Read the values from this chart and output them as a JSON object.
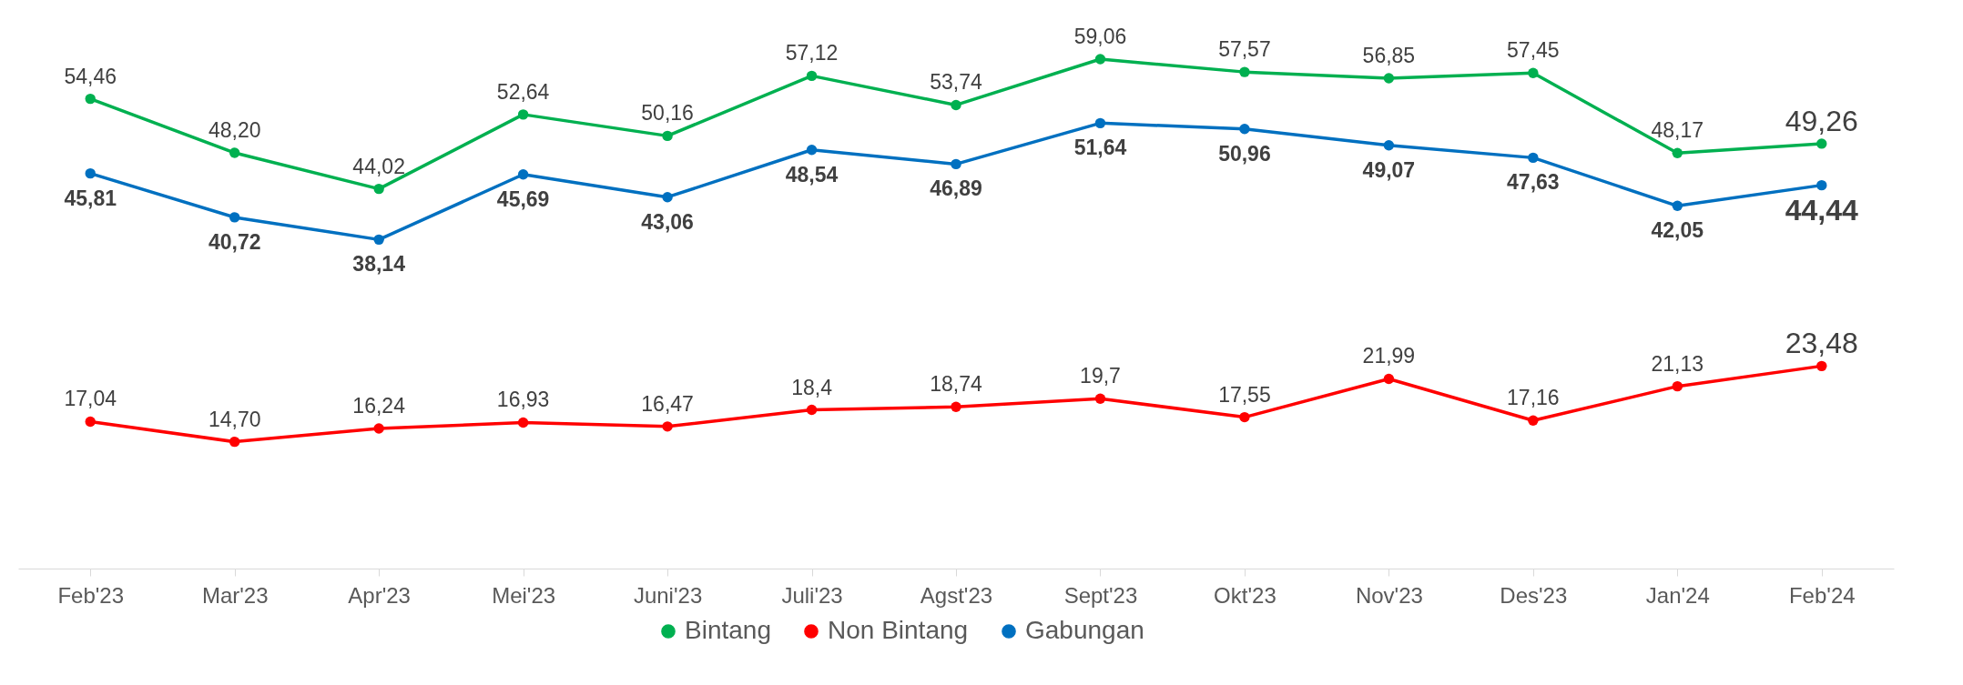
{
  "chart_data": {
    "type": "line",
    "categories": [
      "Feb'23",
      "Mar'23",
      "Apr'23",
      "Mei'23",
      "Juni'23",
      "Juli'23",
      "Agst'23",
      "Sept'23",
      "Okt'23",
      "Nov'23",
      "Des'23",
      "Jan'24",
      "Feb'24"
    ],
    "series": [
      {
        "name": "Bintang",
        "color": "#00b050",
        "values": [
          54.46,
          48.2,
          44.02,
          52.64,
          50.16,
          57.12,
          53.74,
          59.06,
          57.57,
          56.85,
          57.45,
          48.17,
          49.26
        ],
        "value_labels": [
          "54,46",
          "48,20",
          "44,02",
          "52,64",
          "50,16",
          "57,12",
          "53,74",
          "59,06",
          "57,57",
          "56,85",
          "57,45",
          "48,17",
          "49,26"
        ]
      },
      {
        "name": "Non Bintang",
        "color": "#ff0000",
        "values": [
          17.04,
          14.7,
          16.24,
          16.93,
          16.47,
          18.4,
          18.74,
          19.7,
          17.55,
          21.99,
          17.16,
          21.13,
          23.48
        ],
        "value_labels": [
          "17,04",
          "14,70",
          "16,24",
          "16,93",
          "16,47",
          "18,4",
          "18,74",
          "19,7",
          "17,55",
          "21,99",
          "17,16",
          "21,13",
          "23,48"
        ]
      },
      {
        "name": "Gabungan",
        "color": "#0070c0",
        "values": [
          45.81,
          40.72,
          38.14,
          45.69,
          43.06,
          48.54,
          46.89,
          51.64,
          50.96,
          49.07,
          47.63,
          42.05,
          44.44
        ],
        "value_labels": [
          "45,81",
          "40,72",
          "38,14",
          "45,69",
          "43,06",
          "48,54",
          "46,89",
          "51,64",
          "50,96",
          "49,07",
          "47,63",
          "42,05",
          "44,44"
        ]
      }
    ],
    "marker": "circle",
    "line_style": "solid",
    "grid": false,
    "legend": "bottom",
    "tick_labels": "x"
  }
}
